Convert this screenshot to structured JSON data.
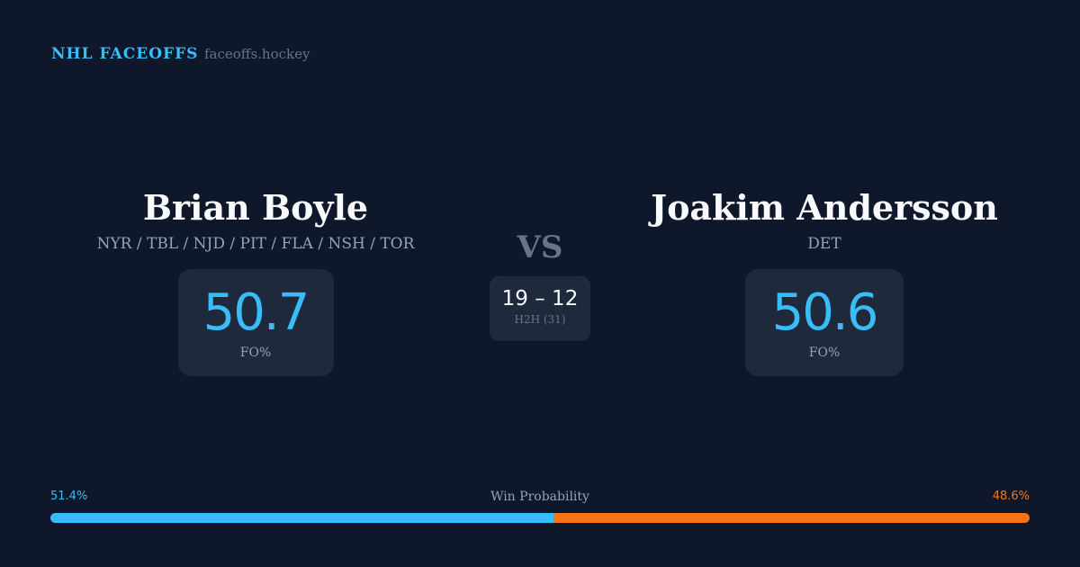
{
  "brand": {
    "title": "NHL FACEOFFS",
    "site": "faceoffs.hockey"
  },
  "left": {
    "name": "Brian Boyle",
    "teams": "NYR / TBL / NJD / PIT / FLA / NSH / TOR",
    "fo_pct": "50.7",
    "fo_label": "FO%"
  },
  "right": {
    "name": "Joakim Andersson",
    "teams": "DET",
    "fo_pct": "50.6",
    "fo_label": "FO%"
  },
  "vs": "VS",
  "h2h": {
    "score": "19 – 12",
    "label": "H2H (31)"
  },
  "win_prob": {
    "label": "Win Probability",
    "left": "51.4%",
    "right": "48.6%",
    "left_value": 51.4,
    "right_value": 48.6,
    "left_color": "#38bdf8",
    "right_color": "#f97316"
  }
}
